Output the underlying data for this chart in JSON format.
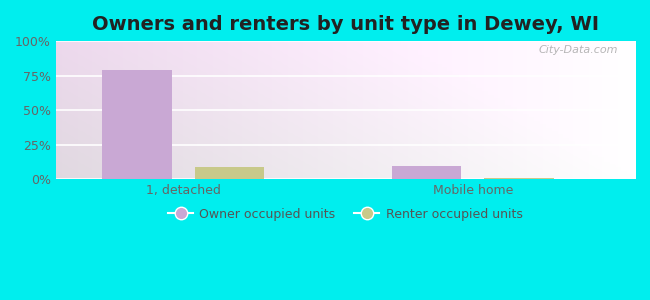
{
  "title": "Owners and renters by unit type in Dewey, WI",
  "categories": [
    "1, detached",
    "Mobile home"
  ],
  "owner_values": [
    79,
    10
  ],
  "renter_values": [
    9,
    1.2
  ],
  "owner_color": "#c9a8d4",
  "renter_color": "#c8c98a",
  "ylim": [
    0,
    100
  ],
  "yticks": [
    0,
    25,
    50,
    75,
    100
  ],
  "ytick_labels": [
    "0%",
    "25%",
    "50%",
    "75%",
    "100%"
  ],
  "bg_color_tl": "#dff5e8",
  "bg_color_br": "#f5f5e8",
  "outer_bg": "#00eeee",
  "legend_owner": "Owner occupied units",
  "legend_renter": "Renter occupied units",
  "watermark": "City-Data.com",
  "bar_width": 0.12,
  "group_positions": [
    0.22,
    0.72
  ],
  "title_fontsize": 14,
  "label_fontsize": 9,
  "tick_fontsize": 9
}
